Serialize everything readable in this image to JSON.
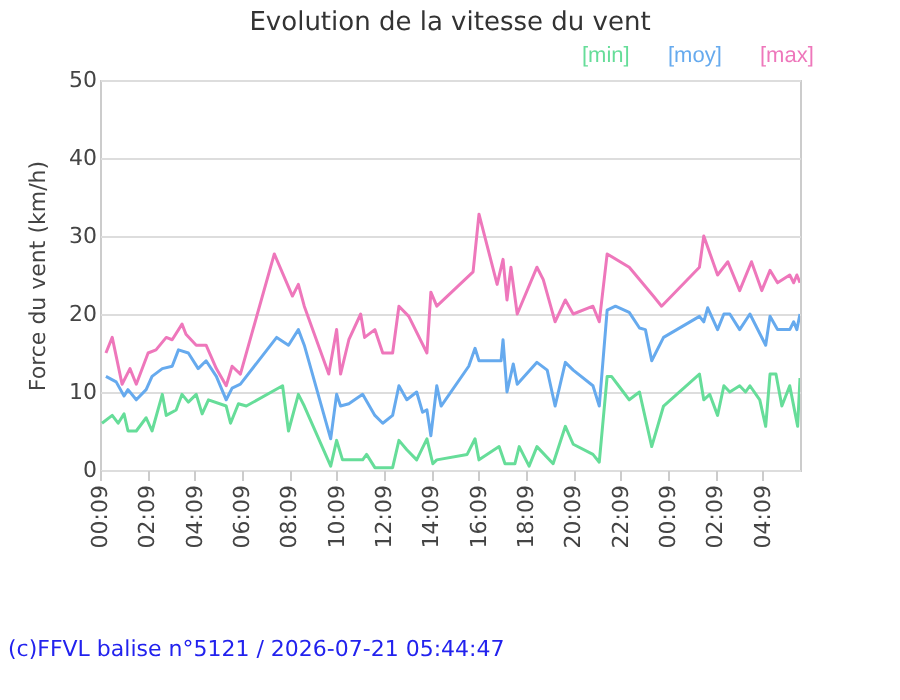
{
  "chart_data": {
    "type": "line",
    "title": "Evolution de la vitesse du vent",
    "ylabel": "Force du vent (km/h)",
    "xlim": [
      "2026-07-20T00:09",
      "2026-07-21T05:44"
    ],
    "ylim": [
      0,
      50
    ],
    "yticks": [
      0,
      10,
      20,
      30,
      40,
      50
    ],
    "xticks": [
      {
        "value": "2026-07-20T00:09",
        "label": "00:09"
      },
      {
        "value": "2026-07-20T02:09",
        "label": "02:09"
      },
      {
        "value": "2026-07-20T04:09",
        "label": "04:09"
      },
      {
        "value": "2026-07-20T06:09",
        "label": "06:09"
      },
      {
        "value": "2026-07-20T08:09",
        "label": "08:09"
      },
      {
        "value": "2026-07-20T10:09",
        "label": "10:09"
      },
      {
        "value": "2026-07-20T12:09",
        "label": "12:09"
      },
      {
        "value": "2026-07-20T14:09",
        "label": "14:09"
      },
      {
        "value": "2026-07-20T16:09",
        "label": "16:09"
      },
      {
        "value": "2026-07-20T18:09",
        "label": "18:09"
      },
      {
        "value": "2026-07-20T20:09",
        "label": "20:09"
      },
      {
        "value": "2026-07-20T22:09",
        "label": "22:09"
      },
      {
        "value": "2026-07-21T00:09",
        "label": "00:09"
      },
      {
        "value": "2026-07-21T02:09",
        "label": "02:09"
      },
      {
        "value": "2026-07-21T04:09",
        "label": "04:09"
      }
    ],
    "grid": "y",
    "legend": "top right",
    "annotations": [
      "(c)FFVL balise n°5121 / 2026-07-21 05:44:47"
    ],
    "series": [
      {
        "name": "[min]",
        "color": "#66dd99",
        "x": [
          "2026-07-20T00:14",
          "2026-07-20T00:40",
          "2026-07-20T00:55",
          "2026-07-20T01:10",
          "2026-07-20T01:20",
          "2026-07-20T01:41",
          "2026-07-20T02:06",
          "2026-07-20T02:21",
          "2026-07-20T02:47",
          "2026-07-20T02:57",
          "2026-07-20T03:22",
          "2026-07-20T03:37",
          "2026-07-20T03:53",
          "2026-07-20T04:13",
          "2026-07-20T04:28",
          "2026-07-20T04:44",
          "2026-07-20T05:29",
          "2026-07-20T05:40",
          "2026-07-20T06:00",
          "2026-07-20T06:20",
          "2026-07-20T07:52",
          "2026-07-20T08:07",
          "2026-07-20T08:32",
          "2026-07-20T08:47",
          "2026-07-20T09:54",
          "2026-07-20T10:09",
          "2026-07-20T10:24",
          "2026-07-20T11:15",
          "2026-07-20T11:25",
          "2026-07-20T11:46",
          "2026-07-20T12:31",
          "2026-07-20T12:47",
          "2026-07-20T13:07",
          "2026-07-20T13:32",
          "2026-07-20T13:58",
          "2026-07-20T14:13",
          "2026-07-20T14:23",
          "2026-07-20T15:40",
          "2026-07-20T16:00",
          "2026-07-20T16:10",
          "2026-07-20T17:01",
          "2026-07-20T17:16",
          "2026-07-20T17:41",
          "2026-07-20T17:52",
          "2026-07-20T18:17",
          "2026-07-20T18:37",
          "2026-07-20T19:18",
          "2026-07-20T19:49",
          "2026-07-20T20:09",
          "2026-07-20T20:59",
          "2026-07-20T21:15",
          "2026-07-20T21:35",
          "2026-07-20T21:46",
          "2026-07-20T22:16",
          "2026-07-20T22:31",
          "2026-07-20T22:57",
          "2026-07-20T23:28",
          "2026-07-20T23:58",
          "2026-07-21T01:29",
          "2026-07-21T01:40",
          "2026-07-21T01:55",
          "2026-07-21T02:15",
          "2026-07-21T02:31",
          "2026-07-21T02:46",
          "2026-07-21T03:11",
          "2026-07-21T03:26",
          "2026-07-21T03:37",
          "2026-07-21T04:02",
          "2026-07-21T04:17",
          "2026-07-21T04:28",
          "2026-07-21T04:43",
          "2026-07-21T04:58",
          "2026-07-21T05:18",
          "2026-07-21T05:38",
          "2026-07-21T05:44"
        ],
        "values": [
          6,
          7,
          6,
          7.2,
          5,
          5,
          6.7,
          5,
          9.7,
          7,
          7.7,
          9.7,
          8.7,
          9.7,
          7.2,
          9,
          8.2,
          6,
          8.5,
          8.2,
          10.8,
          5,
          9.7,
          8.2,
          0.5,
          3.8,
          1.3,
          1.3,
          2,
          0.3,
          0.3,
          3.8,
          2.6,
          1.3,
          4,
          0.8,
          1.3,
          2,
          4,
          1.3,
          3,
          0.8,
          0.8,
          3,
          0.5,
          3,
          0.8,
          5.6,
          3.3,
          2,
          1,
          12,
          12,
          10,
          9,
          10,
          3,
          8.2,
          12.3,
          9,
          9.7,
          7,
          10.8,
          10,
          10.8,
          10,
          10.8,
          9,
          5.6,
          12.3,
          12.3,
          8.2,
          10.8,
          5.6,
          11.8
        ]
      },
      {
        "name": "[moy]",
        "color": "#66aaee",
        "x": [
          "2026-07-20T00:24",
          "2026-07-20T00:50",
          "2026-07-20T01:10",
          "2026-07-20T01:20",
          "2026-07-20T01:41",
          "2026-07-20T02:06",
          "2026-07-20T02:21",
          "2026-07-20T02:47",
          "2026-07-20T03:12",
          "2026-07-20T03:28",
          "2026-07-20T03:53",
          "2026-07-20T04:18",
          "2026-07-20T04:38",
          "2026-07-20T05:04",
          "2026-07-20T05:29",
          "2026-07-20T05:44",
          "2026-07-20T06:05",
          "2026-07-20T07:37",
          "2026-07-20T08:07",
          "2026-07-20T08:32",
          "2026-07-20T08:47",
          "2026-07-20T09:54",
          "2026-07-20T10:09",
          "2026-07-20T10:19",
          "2026-07-20T10:40",
          "2026-07-20T11:15",
          "2026-07-20T11:46",
          "2026-07-20T12:06",
          "2026-07-20T12:31",
          "2026-07-20T12:47",
          "2026-07-20T13:07",
          "2026-07-20T13:32",
          "2026-07-20T13:47",
          "2026-07-20T13:58",
          "2026-07-20T14:08",
          "2026-07-20T14:23",
          "2026-07-20T14:34",
          "2026-07-20T15:44",
          "2026-07-20T16:00",
          "2026-07-20T16:10",
          "2026-07-20T17:06",
          "2026-07-20T17:11",
          "2026-07-20T17:21",
          "2026-07-20T17:37",
          "2026-07-20T17:47",
          "2026-07-20T18:37",
          "2026-07-20T19:03",
          "2026-07-20T19:23",
          "2026-07-20T19:49",
          "2026-07-20T20:09",
          "2026-07-20T20:59",
          "2026-07-20T21:15",
          "2026-07-20T21:35",
          "2026-07-20T21:56",
          "2026-07-20T22:31",
          "2026-07-20T22:57",
          "2026-07-20T23:12",
          "2026-07-20T23:28",
          "2026-07-20T23:58",
          "2026-07-21T01:29",
          "2026-07-21T01:40",
          "2026-07-21T01:50",
          "2026-07-21T02:15",
          "2026-07-21T02:31",
          "2026-07-21T02:46",
          "2026-07-21T03:11",
          "2026-07-21T03:37",
          "2026-07-21T04:17",
          "2026-07-21T04:28",
          "2026-07-21T04:47",
          "2026-07-21T05:18",
          "2026-07-21T05:28",
          "2026-07-21T05:36",
          "2026-07-21T05:44"
        ],
        "values": [
          12,
          11.3,
          9.5,
          10.3,
          9,
          10.3,
          12,
          13,
          13.3,
          15.4,
          15,
          13,
          14,
          12,
          9,
          10.5,
          11,
          17,
          16,
          18,
          16,
          4,
          9.7,
          8.2,
          8.5,
          9.7,
          7,
          6,
          7,
          10.8,
          9,
          10,
          7.4,
          7.7,
          4.4,
          10.8,
          8.2,
          13.3,
          15.6,
          14,
          14,
          16.7,
          10,
          13.6,
          11,
          13.8,
          12.8,
          8.2,
          13.8,
          12.8,
          10.8,
          8.2,
          20.5,
          21,
          20.2,
          18.2,
          18,
          14,
          17,
          19.7,
          19,
          20.8,
          18,
          20,
          20,
          18,
          20,
          16,
          19.7,
          18,
          18,
          19,
          18,
          20
        ]
      },
      {
        "name": "[max]",
        "color": "#ee77bb",
        "x": [
          "2026-07-20T00:24",
          "2026-07-20T00:40",
          "2026-07-20T01:05",
          "2026-07-20T01:25",
          "2026-07-20T01:41",
          "2026-07-20T02:11",
          "2026-07-20T02:31",
          "2026-07-20T02:57",
          "2026-07-20T03:12",
          "2026-07-20T03:37",
          "2026-07-20T03:47",
          "2026-07-20T04:13",
          "2026-07-20T04:38",
          "2026-07-20T05:04",
          "2026-07-20T05:29",
          "2026-07-20T05:44",
          "2026-07-20T06:05",
          "2026-07-20T07:31",
          "2026-07-20T08:17",
          "2026-07-20T08:32",
          "2026-07-20T08:47",
          "2026-07-20T09:49",
          "2026-07-20T10:09",
          "2026-07-20T10:19",
          "2026-07-20T10:40",
          "2026-07-20T11:10",
          "2026-07-20T11:20",
          "2026-07-20T11:46",
          "2026-07-20T12:06",
          "2026-07-20T12:31",
          "2026-07-20T12:47",
          "2026-07-20T13:12",
          "2026-07-20T13:58",
          "2026-07-20T14:08",
          "2026-07-20T14:23",
          "2026-07-20T15:55",
          "2026-07-20T16:10",
          "2026-07-20T16:56",
          "2026-07-20T17:11",
          "2026-07-20T17:21",
          "2026-07-20T17:31",
          "2026-07-20T17:47",
          "2026-07-20T18:37",
          "2026-07-20T18:53",
          "2026-07-20T19:23",
          "2026-07-20T19:49",
          "2026-07-20T20:09",
          "2026-07-20T20:59",
          "2026-07-20T21:15",
          "2026-07-20T21:35",
          "2026-07-20T22:31",
          "2026-07-20T23:32",
          "2026-07-20T23:53",
          "2026-07-21T01:29",
          "2026-07-21T01:40",
          "2026-07-21T02:15",
          "2026-07-21T02:41",
          "2026-07-21T03:11",
          "2026-07-21T03:41",
          "2026-07-21T04:07",
          "2026-07-21T04:28",
          "2026-07-21T04:47",
          "2026-07-21T05:18",
          "2026-07-21T05:28",
          "2026-07-21T05:36",
          "2026-07-21T05:44"
        ],
        "values": [
          15,
          17,
          11,
          13,
          11,
          15,
          15.4,
          17,
          16.7,
          18.7,
          17.4,
          16,
          16,
          13,
          10.8,
          13.3,
          12.3,
          27.7,
          22.3,
          23.8,
          21,
          12.3,
          18,
          12.3,
          16.7,
          20,
          17,
          18,
          15,
          15,
          21,
          19.7,
          15,
          22.8,
          21,
          25.4,
          32.8,
          23.8,
          27,
          21.8,
          26,
          20,
          26,
          24.4,
          19,
          21.8,
          20,
          21,
          19,
          27.7,
          26,
          22.3,
          21,
          26,
          30,
          25,
          26.7,
          23,
          26.7,
          23,
          25.6,
          24,
          25,
          24,
          25,
          24
        ]
      }
    ]
  }
}
